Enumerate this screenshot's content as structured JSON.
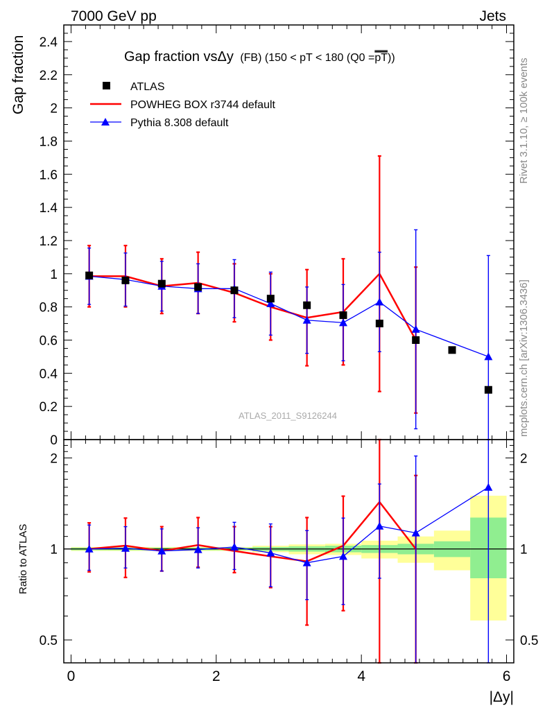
{
  "header": {
    "left": "7000 GeV pp",
    "right": "Jets"
  },
  "side_text": {
    "rivet": "Rivet 3.1.10, ≥ 100k events",
    "mcplots": "mcplots.cern.ch [arXiv:1306.3436]"
  },
  "chart_data": {
    "type": "scatter",
    "title": "Gap fraction vsΔy (FB) (150 < pT < 180 (Q0 =pT))",
    "title_parts": {
      "main": "Gap fraction vsΔy",
      "rest": "(FB) (150 < pT < 180 (Q0 =",
      "overlined": "pT",
      "close": "))"
    },
    "analysis_label": "ATLAS_2011_S9126244",
    "xlabel": "|Δy|",
    "ylabel_main": "Gap fraction",
    "ylabel_ratio": "Ratio to ATLAS",
    "xlim": [
      -0.1,
      6.1
    ],
    "ylim_main": [
      0,
      2.5
    ],
    "ylim_ratio": [
      0.42,
      2.3
    ],
    "ratio_log_scale": true,
    "x_ticks": [
      0,
      2,
      4,
      6
    ],
    "y_ticks_main": [
      0,
      0.2,
      0.4,
      0.6,
      0.8,
      1,
      1.2,
      1.4,
      1.6,
      1.8,
      2,
      2.2,
      2.4
    ],
    "y_tick_labels_main": [
      "0",
      "0.2",
      "0.4",
      "0.6",
      "0.8",
      "1",
      "1.2",
      "1.4",
      "1.6",
      "1.8",
      "2",
      "2.2",
      "2.4"
    ],
    "y_ticks_ratio": [
      0.5,
      1,
      2
    ],
    "y_tick_labels_ratio": [
      "0.5",
      "1",
      "2"
    ],
    "legend_position": "top-left",
    "colors": {
      "data": "#000000",
      "powheg": "#ff0000",
      "pythia": "#0000ff",
      "band_inner": "#90ee90",
      "band_outer": "#ffff99"
    },
    "series": [
      {
        "name": "ATLAS",
        "style": "square-markers",
        "x": [
          0.25,
          0.75,
          1.25,
          1.75,
          2.25,
          2.75,
          3.25,
          3.75,
          4.25,
          4.75,
          5.25,
          5.75
        ],
        "y": [
          0.99,
          0.96,
          0.94,
          0.92,
          0.9,
          0.85,
          0.81,
          0.75,
          0.7,
          0.6,
          0.54,
          0.3
        ]
      },
      {
        "name": "POWHEG BOX r3744 default",
        "style": "line",
        "x": [
          0.25,
          0.75,
          1.25,
          1.75,
          2.25,
          2.75,
          3.25,
          3.75,
          4.25,
          4.75
        ],
        "y": [
          0.985,
          0.985,
          0.925,
          0.945,
          0.885,
          0.8,
          0.735,
          0.77,
          1.0,
          0.6
        ],
        "err": [
          0.185,
          0.185,
          0.165,
          0.185,
          0.175,
          0.2,
          0.29,
          0.32,
          0.71,
          0.44
        ],
        "ratio": [
          1.0,
          1.025,
          0.985,
          1.03,
          0.985,
          0.945,
          0.91,
          1.025,
          1.43,
          1.0
        ],
        "ratio_err_lo": [
          0.16,
          0.22,
          0.14,
          0.16,
          0.15,
          0.2,
          0.35,
          0.4,
          1.05,
          0.95
        ],
        "ratio_err_hi": [
          0.22,
          0.24,
          0.2,
          0.24,
          0.2,
          0.24,
          0.36,
          0.47,
          0.9,
          0.75
        ]
      },
      {
        "name": "Pythia 8.308 default",
        "style": "line-triangles",
        "x": [
          0.25,
          0.75,
          1.25,
          1.75,
          2.25,
          2.75,
          3.25,
          3.75,
          4.25,
          4.75,
          5.75
        ],
        "y": [
          0.985,
          0.965,
          0.925,
          0.91,
          0.91,
          0.82,
          0.72,
          0.705,
          0.83,
          0.665,
          0.5
        ],
        "err": [
          0.17,
          0.16,
          0.15,
          0.15,
          0.175,
          0.19,
          0.2,
          0.23,
          0.3,
          0.6,
          0.61
        ],
        "ratio": [
          1.0,
          1.005,
          0.985,
          0.995,
          1.015,
          0.97,
          0.9,
          0.945,
          1.19,
          1.13,
          1.6
        ],
        "ratio_err_lo": [
          0.15,
          0.14,
          0.14,
          0.13,
          0.16,
          0.22,
          0.22,
          0.29,
          0.39,
          0.8,
          1.2
        ],
        "ratio_err_hi": [
          0.2,
          0.18,
          0.18,
          0.18,
          0.21,
          0.24,
          0.25,
          0.32,
          0.45,
          0.9,
          0.75
        ]
      }
    ],
    "ratio_bands": {
      "x_edges": [
        0,
        0.5,
        1,
        1.5,
        2,
        2.5,
        3,
        3.5,
        4,
        4.5,
        5,
        5.5,
        6
      ],
      "inner": [
        [
          0.99,
          1.01
        ],
        [
          0.99,
          1.01
        ],
        [
          0.99,
          1.01
        ],
        [
          0.99,
          1.01
        ],
        [
          0.99,
          1.01
        ],
        [
          0.985,
          1.015
        ],
        [
          0.98,
          1.02
        ],
        [
          0.975,
          1.025
        ],
        [
          0.97,
          1.03
        ],
        [
          0.96,
          1.04
        ],
        [
          0.94,
          1.06
        ],
        [
          0.8,
          1.27
        ]
      ],
      "outer": [
        [
          0.985,
          1.015
        ],
        [
          0.985,
          1.015
        ],
        [
          0.985,
          1.015
        ],
        [
          0.985,
          1.015
        ],
        [
          0.985,
          1.015
        ],
        [
          0.975,
          1.025
        ],
        [
          0.96,
          1.035
        ],
        [
          0.955,
          1.04
        ],
        [
          0.93,
          1.065
        ],
        [
          0.9,
          1.1
        ],
        [
          0.85,
          1.15
        ],
        [
          0.58,
          1.5
        ]
      ]
    }
  }
}
